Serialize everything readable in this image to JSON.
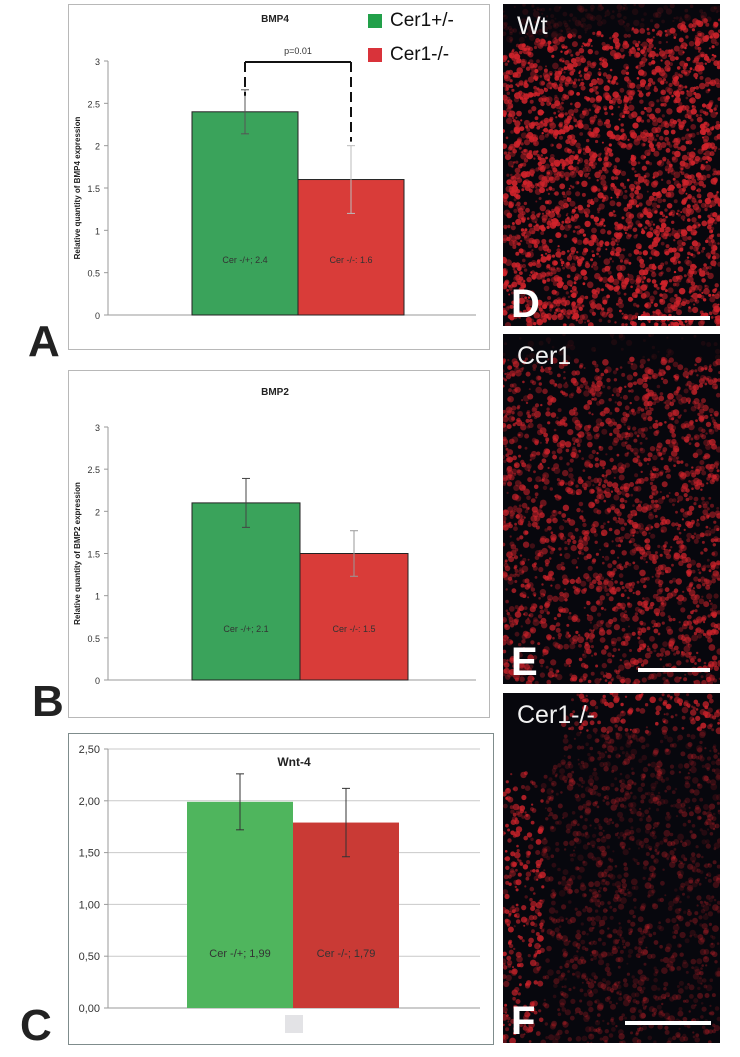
{
  "legend": {
    "items": [
      {
        "label": "Cer1+/-",
        "color": "#22a04a"
      },
      {
        "label": "Cer1-/-",
        "color": "#d9333a"
      }
    ]
  },
  "panels": {
    "a": {
      "letter": "A"
    },
    "b": {
      "letter": "B"
    },
    "c": {
      "letter": "C"
    }
  },
  "micrographs": [
    {
      "label": "Wt",
      "letter": "D"
    },
    {
      "label": "Cer1",
      "letter": "E"
    },
    {
      "label": "Cer1-/-",
      "letter": "F"
    }
  ],
  "colors": {
    "green_bar": "#3aa35b",
    "red_bar": "#d93c39",
    "wnt_green": "#4fb55d",
    "wnt_red": "#c93a35",
    "tissue": "#d0232b"
  },
  "chart_data": [
    {
      "type": "bar",
      "title": "BMP4",
      "ylabel": "Relative quantity of BMP4 expression",
      "xlabel": "",
      "ylim": [
        0,
        3
      ],
      "yticks": [
        "0",
        "0.5",
        "1",
        "1.5",
        "2",
        "2.5",
        "3"
      ],
      "categories": [
        "Cer -/+; 2.4",
        "Cer -/-: 1.6"
      ],
      "values": [
        2.4,
        1.6
      ],
      "error": [
        0.26,
        0.4
      ],
      "grid": false,
      "annotation": "p=0.01"
    },
    {
      "type": "bar",
      "title": "BMP2",
      "ylabel": "Relative quantity of BMP2 expression",
      "xlabel": "",
      "ylim": [
        0,
        3
      ],
      "yticks": [
        "0",
        "0.5",
        "1",
        "1.5",
        "2",
        "2.5",
        "3"
      ],
      "categories": [
        "Cer -/+; 2.1",
        "Cer -/-: 1.5"
      ],
      "values": [
        2.1,
        1.5
      ],
      "error": [
        0.29,
        0.27
      ],
      "grid": false
    },
    {
      "type": "bar",
      "title": "Wnt-4",
      "ylabel": "",
      "xlabel": "",
      "ylim": [
        0,
        2.5
      ],
      "yticks": [
        "0,00",
        "0,50",
        "1,00",
        "1,50",
        "2,00",
        "2,50"
      ],
      "categories": [
        "Cer -/+; 1,99",
        "Cer -/-; 1,79"
      ],
      "values": [
        1.99,
        1.79
      ],
      "error": [
        0.27,
        0.33
      ],
      "grid": true
    }
  ]
}
